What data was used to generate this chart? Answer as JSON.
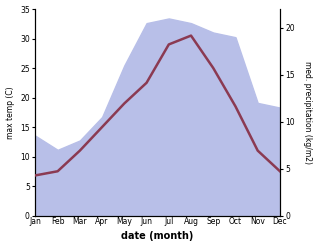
{
  "months": [
    "Jan",
    "Feb",
    "Mar",
    "Apr",
    "May",
    "Jun",
    "Jul",
    "Aug",
    "Sep",
    "Oct",
    "Nov",
    "Dec"
  ],
  "temp_max": [
    6.8,
    7.5,
    11.0,
    15.0,
    19.0,
    22.5,
    29.0,
    30.5,
    25.0,
    18.5,
    11.0,
    7.5
  ],
  "precipitation": [
    8.5,
    7.0,
    8.0,
    10.5,
    16.0,
    20.5,
    21.0,
    20.5,
    19.5,
    19.0,
    12.0,
    11.5
  ],
  "temp_color": "#8B3A52",
  "precip_fill_color": "#b8bfe8",
  "background": "#ffffff",
  "xlabel": "date (month)",
  "ylabel_left": "max temp (C)",
  "ylabel_right": "med. precipitation (kg/m2)",
  "ylim_left": [
    0,
    35
  ],
  "ylim_right": [
    0,
    22
  ],
  "yticks_left": [
    0,
    5,
    10,
    15,
    20,
    25,
    30,
    35
  ],
  "yticks_right": [
    0,
    5,
    10,
    15,
    20
  ],
  "temp_linewidth": 1.8
}
